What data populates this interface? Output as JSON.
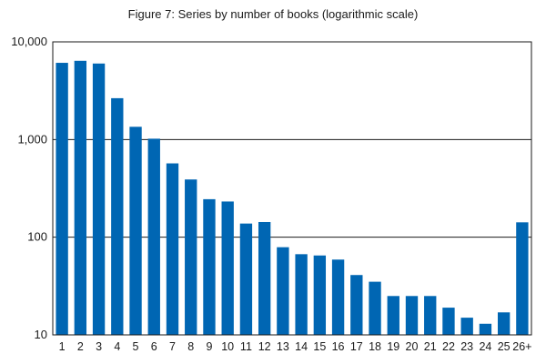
{
  "chart_data": {
    "type": "bar",
    "title": "Figure 7: Series by number of books (logarithmic scale)",
    "xlabel": "",
    "ylabel": "",
    "y_scale": "log",
    "ylim": [
      10,
      10000
    ],
    "y_ticks": [
      10,
      100,
      1000,
      10000
    ],
    "y_tick_labels": [
      "10",
      "100",
      "1,000",
      "10,000"
    ],
    "grid": "horizontal",
    "color": "#0066b3",
    "categories": [
      "1",
      "2",
      "3",
      "4",
      "5",
      "6",
      "7",
      "8",
      "9",
      "10",
      "11",
      "12",
      "13",
      "14",
      "15",
      "16",
      "17",
      "18",
      "19",
      "20",
      "21",
      "22",
      "23",
      "24",
      "25",
      "26+"
    ],
    "values": [
      6100,
      6400,
      6000,
      2650,
      1350,
      1020,
      570,
      390,
      245,
      232,
      138,
      143,
      79,
      67,
      65,
      59,
      41,
      35,
      25,
      25,
      25,
      19,
      15,
      13,
      17,
      142
    ]
  }
}
